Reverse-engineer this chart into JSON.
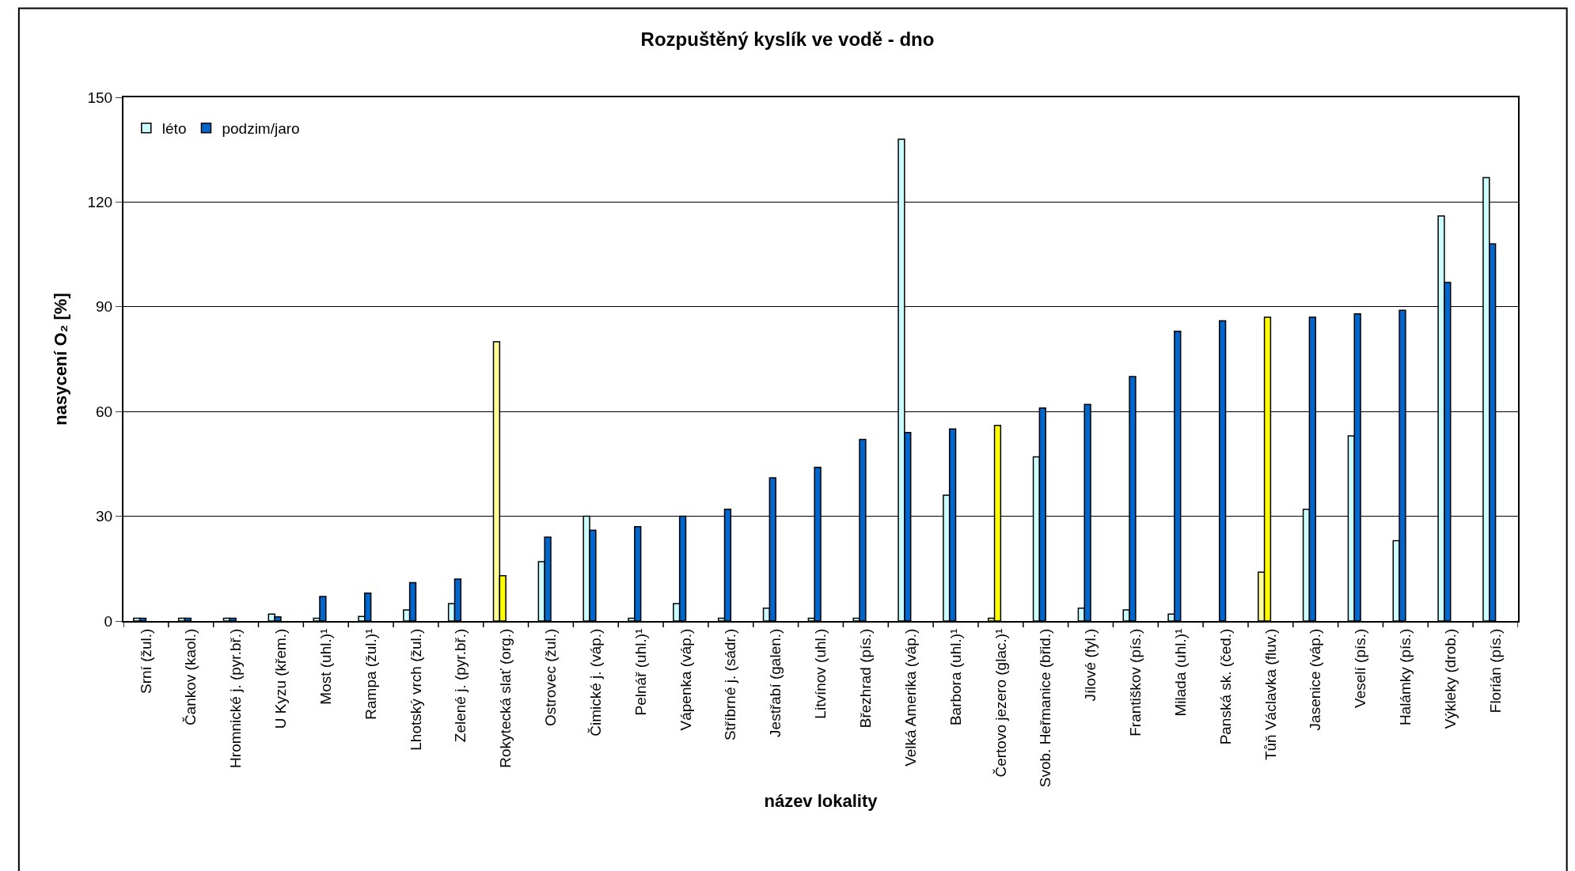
{
  "chart_data": {
    "type": "bar",
    "title": "Rozpuštěný kyslík ve vodě - dno",
    "xlabel": "název lokality",
    "ylabel": "nasycení O₂ [%]",
    "categories": [
      "Srní (žul.)",
      "Čankov (kaol.)",
      "Hromnické j. (pyr.bř.)",
      "U Kyzu (křem.)",
      "Most (uhl.)¹",
      "Rampa (žul.)¹",
      "Lhotský vrch (žul.)",
      "Zelené j. (pyr.bř.)",
      "Rokytecká slať (org.)",
      "Ostrovec (žul.)",
      "Čimické j. (váp.)",
      "Pelnář (uhl.)¹",
      "Vápenka (váp.)",
      "Stříbrné j. (sádr.)",
      "Jestřabí (galen.)",
      "Litvínov (uhl.)",
      "Březhrad (pís.)",
      "Velká Amerika (váp.)",
      "Barbora (uhl.)¹",
      "Čertovo jezero (glac.)¹",
      "Svob. Heřmanice (břid.)",
      "Jílové (fyl.)",
      "Františkov (pís.)",
      "Milada (uhl.)¹",
      "Panská sk. (čed.)",
      "Tůň Václavka (fluv.)",
      "Jasenice (váp.)",
      "Veselí (pís.)",
      "Halámky (pís.)",
      "Výkleky (drob.)",
      "Florián (pís.)"
    ],
    "series": [
      {
        "name": "léto",
        "color": "#ccffff",
        "values": [
          0.8,
          0.8,
          0.8,
          2,
          0.8,
          1.3,
          3.2,
          5,
          80,
          17,
          30,
          0.8,
          5,
          0.8,
          3.7,
          0.8,
          0.8,
          138,
          36,
          0.8,
          47,
          3.7,
          3.2,
          2,
          null,
          14,
          32,
          53,
          23,
          116,
          127
        ],
        "colors": [
          "#ccffff",
          "#ccffff",
          "#ccffff",
          "#ccffff",
          "#ccffff",
          "#ccffff",
          "#ccffff",
          "#ccffff",
          "#ffff99",
          "#ccffff",
          "#ccffff",
          "#ccffff",
          "#ccffff",
          "#ccffff",
          "#ccffff",
          "#ccffff",
          "#ccffff",
          "#ccffff",
          "#ccffff",
          "#ffff99",
          "#ccffff",
          "#ccffff",
          "#ccffff",
          "#ccffff",
          "#ccffff",
          "#ffff99",
          "#ccffff",
          "#ccffff",
          "#ccffff",
          "#ccffff",
          "#ccffff"
        ]
      },
      {
        "name": "podzim/jaro",
        "color": "#0066cc",
        "values": [
          0.8,
          0.8,
          0.8,
          1.2,
          7,
          8,
          11,
          12,
          13,
          24,
          26,
          27,
          30,
          32,
          41,
          44,
          52,
          54,
          55,
          56,
          61,
          62,
          70,
          83,
          86,
          87,
          87,
          88,
          89,
          97,
          108
        ],
        "colors": [
          "#0066cc",
          "#0066cc",
          "#0066cc",
          "#0066cc",
          "#0066cc",
          "#0066cc",
          "#0066cc",
          "#0066cc",
          "#ffff00",
          "#0066cc",
          "#0066cc",
          "#0066cc",
          "#0066cc",
          "#0066cc",
          "#0066cc",
          "#0066cc",
          "#0066cc",
          "#0066cc",
          "#0066cc",
          "#ffff00",
          "#0066cc",
          "#0066cc",
          "#0066cc",
          "#0066cc",
          "#0066cc",
          "#ffff00",
          "#0066cc",
          "#0066cc",
          "#0066cc",
          "#0066cc",
          "#0066cc"
        ]
      }
    ],
    "ylim": [
      0,
      150
    ],
    "yticks": [
      0,
      30,
      60,
      90,
      120,
      150
    ],
    "grid": "y",
    "legend": "top left"
  }
}
